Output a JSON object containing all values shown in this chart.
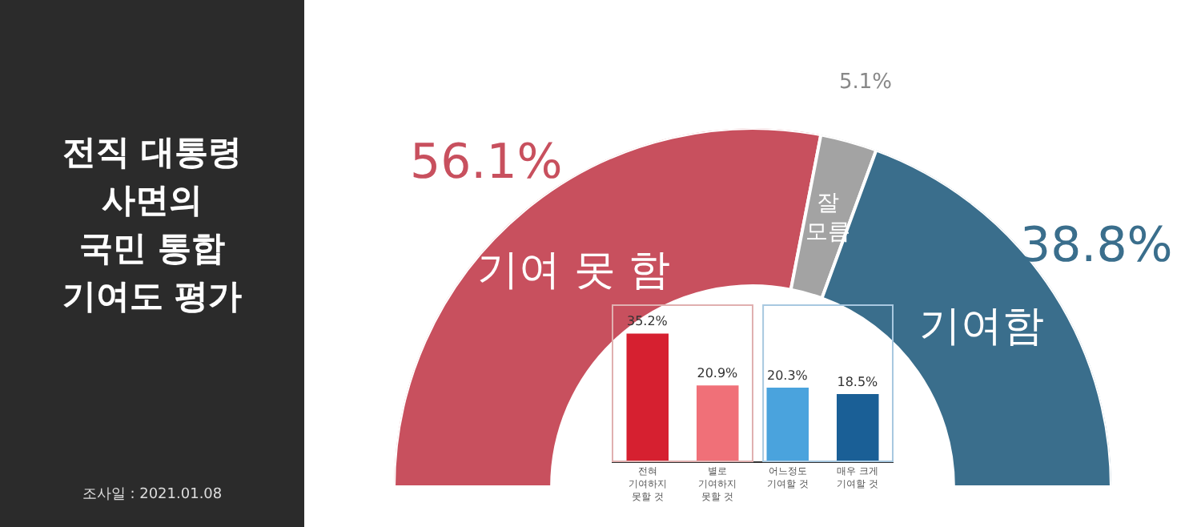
{
  "chart_data": [
    {
      "type": "donut",
      "title": "전직 대통령\n사면의\n국민 통합\n기여도 평가",
      "annotations": [
        "조사일 : 2021.01.08"
      ],
      "categories": [
        "기여 못 함",
        "잘 모름",
        "기여함"
      ],
      "values": [
        56.1,
        5.1,
        38.8
      ],
      "colors": [
        "#c8505e",
        "#a3a3a3",
        "#3a6e8c"
      ],
      "value_labels": [
        "56.1%",
        "5.1%",
        "38.8%"
      ]
    },
    {
      "type": "bar",
      "categories": [
        "전혀\n기여하지\n못할 것",
        "별로\n기여하지\n못할 것",
        "어느정도\n기여할 것",
        "매우 크게\n기여할 것"
      ],
      "values": [
        35.2,
        20.9,
        20.3,
        18.5
      ],
      "colors": [
        "#d62030",
        "#f07078",
        "#4aa3dd",
        "#1a5f96"
      ],
      "value_labels": [
        "35.2%",
        "20.9%",
        "20.3%",
        "18.5%"
      ],
      "tick_labels": "x",
      "grid": false
    }
  ]
}
